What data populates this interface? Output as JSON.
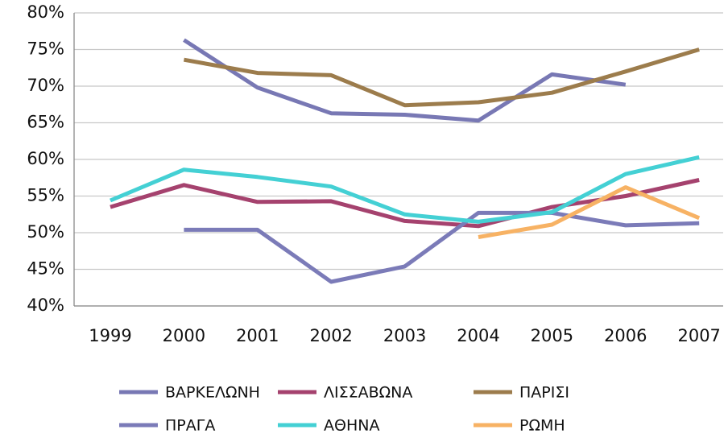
{
  "chart_data": {
    "type": "line",
    "categories": [
      "1999",
      "2000",
      "2001",
      "2002",
      "2003",
      "2004",
      "2005",
      "2006",
      "2007"
    ],
    "ylim": [
      40,
      80
    ],
    "yticks": [
      {
        "value": 40,
        "label": "40%"
      },
      {
        "value": 45,
        "label": "45%"
      },
      {
        "value": 50,
        "label": "50%"
      },
      {
        "value": 55,
        "label": "55%"
      },
      {
        "value": 60,
        "label": "60%"
      },
      {
        "value": 65,
        "label": "65%"
      },
      {
        "value": 70,
        "label": "70%"
      },
      {
        "value": 75,
        "label": "75%"
      },
      {
        "value": 80,
        "label": "80%"
      }
    ],
    "grid": true,
    "legend": "bottom",
    "series": [
      {
        "name": "ΒΑΡΚΕΛΩΝΗ",
        "color": "#7878b4",
        "values": [
          null,
          76.3,
          69.8,
          66.3,
          66.1,
          65.3,
          71.6,
          70.2,
          null
        ]
      },
      {
        "name": "ΛΙΣΣΑΒΩΝΑ",
        "color": "#a5426e",
        "values": [
          53.5,
          56.5,
          54.2,
          54.3,
          51.6,
          50.9,
          53.5,
          55.0,
          57.2
        ]
      },
      {
        "name": "ΠΑΡΙΣΙ",
        "color": "#9c7c4c",
        "values": [
          null,
          73.6,
          71.8,
          71.5,
          67.4,
          67.8,
          69.1,
          72.0,
          75.0
        ]
      },
      {
        "name": "ΠΡΑΓΑ",
        "color": "#7b7bb8",
        "values": [
          null,
          50.4,
          50.4,
          43.3,
          45.4,
          52.7,
          52.7,
          51.0,
          51.3
        ]
      },
      {
        "name": "ΑΘΗΝΑ",
        "color": "#44d0d4",
        "values": [
          54.4,
          58.6,
          57.6,
          56.3,
          52.5,
          51.5,
          52.8,
          58.0,
          60.3
        ]
      },
      {
        "name": "ΡΩΜΗ",
        "color": "#f7b264",
        "values": [
          null,
          null,
          null,
          null,
          null,
          49.4,
          51.1,
          56.2,
          52.0
        ]
      }
    ]
  }
}
